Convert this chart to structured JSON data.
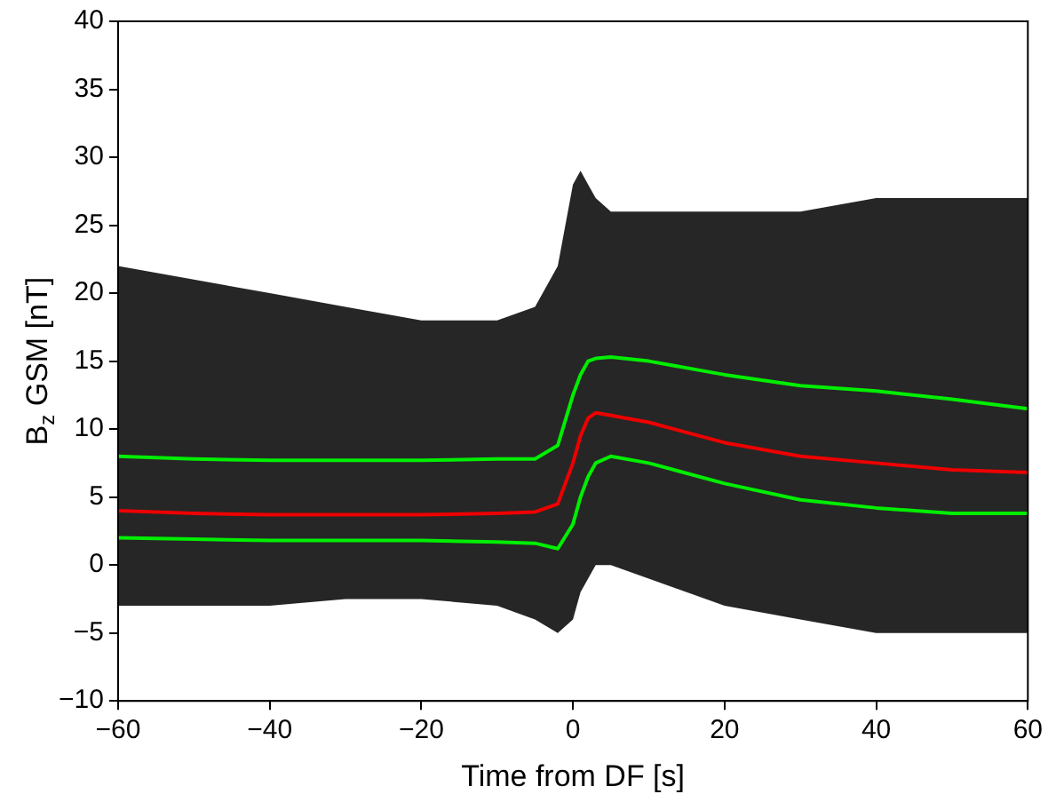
{
  "chart_data": {
    "type": "line",
    "xlabel": "Time from DF [s]",
    "ylabel": "B$_{z}$ GSM [nT]",
    "x": [
      -60,
      -50,
      -40,
      -30,
      -20,
      -10,
      -5,
      -2,
      0,
      1,
      2,
      3,
      5,
      10,
      20,
      30,
      40,
      50,
      60
    ],
    "xlim": [
      -60,
      60
    ],
    "xticks": [
      -60,
      -40,
      -20,
      0,
      20,
      40,
      60
    ],
    "ylim": [
      -10,
      40
    ],
    "yticks": [
      -10,
      -5,
      0,
      5,
      10,
      15,
      20,
      25,
      30,
      35,
      40
    ],
    "grid": false,
    "legend": false,
    "marker": "none",
    "line_style": "solid",
    "series": [
      {
        "color": "#00ee00",
        "values": [
          8.0,
          7.8,
          7.7,
          7.7,
          7.7,
          7.8,
          7.8,
          8.8,
          12.5,
          14.0,
          15.0,
          15.2,
          15.3,
          15.0,
          14.0,
          13.2,
          12.8,
          12.2,
          11.5
        ]
      },
      {
        "color": "#ee0000",
        "values": [
          4.0,
          3.8,
          3.7,
          3.7,
          3.7,
          3.8,
          3.9,
          4.5,
          7.5,
          9.5,
          10.8,
          11.2,
          11.0,
          10.5,
          9.0,
          8.0,
          7.5,
          7.0,
          6.8
        ],
        "lower": [
          -3,
          -3,
          -3,
          -2.5,
          -2.5,
          -3,
          -4,
          -5,
          -4,
          -2,
          -1,
          0,
          0,
          -1,
          -3,
          -4,
          -5,
          -5,
          -5
        ],
        "upper": [
          22,
          21,
          20,
          19,
          18,
          18,
          19,
          22,
          28,
          29,
          28,
          27,
          26,
          26,
          26,
          26,
          27,
          27,
          27
        ]
      },
      {
        "color": "#00ee00",
        "values": [
          2.0,
          1.9,
          1.8,
          1.8,
          1.8,
          1.7,
          1.6,
          1.2,
          3.0,
          5.0,
          6.5,
          7.5,
          8.0,
          7.5,
          6.0,
          4.8,
          4.2,
          3.8,
          3.8
        ]
      }
    ]
  }
}
